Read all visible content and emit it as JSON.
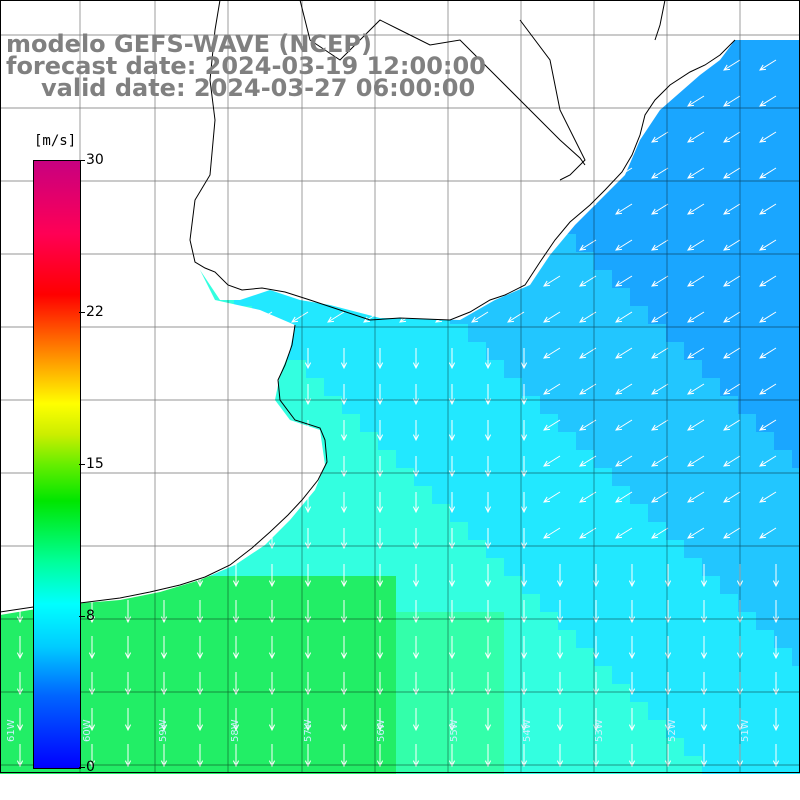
{
  "title": {
    "model": "modelo GEFS-WAVE (NCEP)",
    "forecast_date": "forecast date: 2024-03-19 12:00:00",
    "valid_date": "valid date: 2024-03-27 06:00:00"
  },
  "colorbar": {
    "unit": "[m/s]",
    "ticks": [
      "30",
      "22",
      "15",
      "8",
      "0"
    ],
    "min": 0,
    "max": 30
  },
  "axes": {
    "lon": [
      "61W",
      "60W",
      "59W",
      "58W",
      "57W",
      "56W",
      "55W",
      "54W",
      "53W",
      "52W",
      "51W"
    ]
  },
  "colors": {
    "land": "#ffffff",
    "arrows": "#ffffff",
    "coastline": "#000000",
    "labels": "#808080"
  },
  "wind": {
    "direction": "from north-east, pointing south-west",
    "speed_range_ms": [
      7,
      11
    ]
  }
}
